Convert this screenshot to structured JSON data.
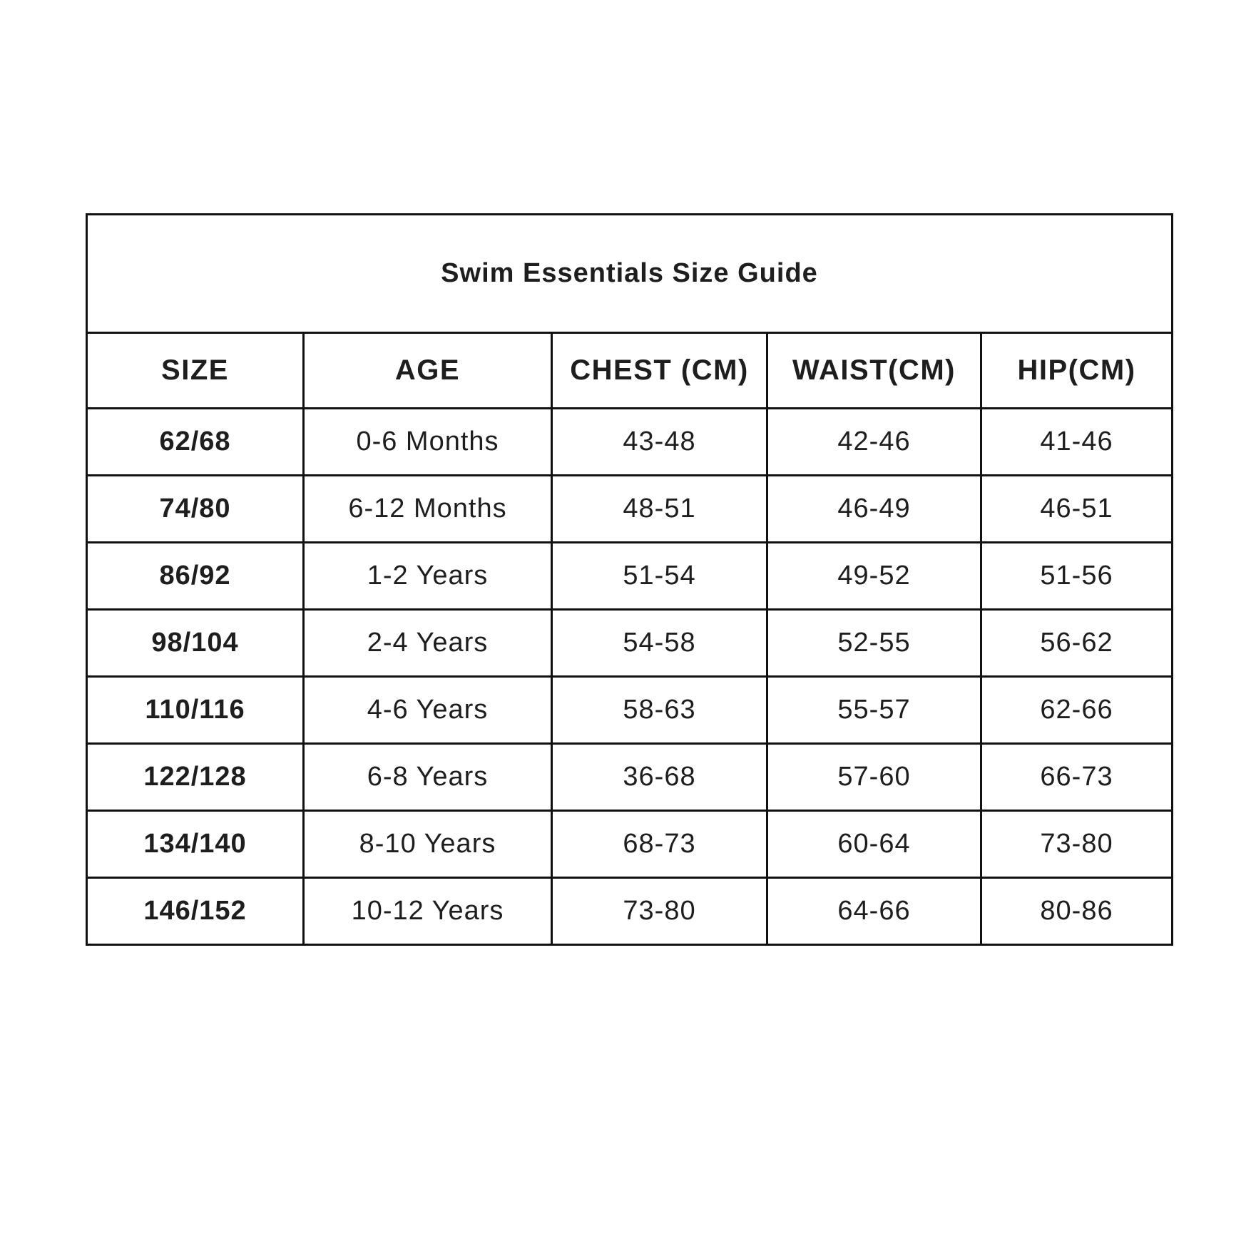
{
  "title": "Swim Essentials Size Guide",
  "headers": [
    "SIZE",
    "AGE",
    "CHEST (CM)",
    "WAIST(CM)",
    "HIP(CM)"
  ],
  "rows": [
    [
      "62/68",
      "0-6 Months",
      "43-48",
      "42-46",
      "41-46"
    ],
    [
      "74/80",
      "6-12 Months",
      "48-51",
      "46-49",
      "46-51"
    ],
    [
      "86/92",
      "1-2 Years",
      "51-54",
      "49-52",
      "51-56"
    ],
    [
      "98/104",
      "2-4 Years",
      "54-58",
      "52-55",
      "56-62"
    ],
    [
      "110/116",
      "4-6 Years",
      "58-63",
      "55-57",
      "62-66"
    ],
    [
      "122/128",
      "6-8 Years",
      "36-68",
      "57-60",
      "66-73"
    ],
    [
      "134/140",
      "8-10 Years",
      "68-73",
      "60-64",
      "73-80"
    ],
    [
      "146/152",
      "10-12 Years",
      "73-80",
      "64-66",
      "80-86"
    ]
  ]
}
